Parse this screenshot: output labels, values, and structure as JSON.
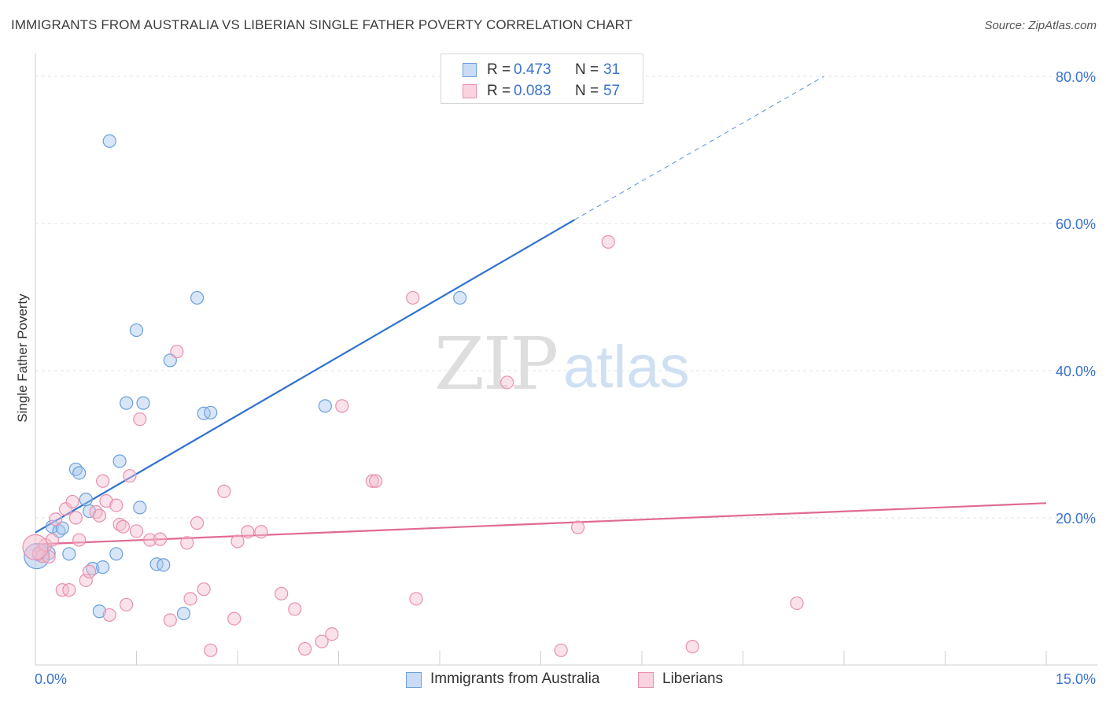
{
  "title": "IMMIGRANTS FROM AUSTRALIA VS LIBERIAN SINGLE FATHER POVERTY CORRELATION CHART",
  "source": "Source: ZipAtlas.com",
  "watermark": {
    "zip": "ZIP",
    "atlas": "atlas"
  },
  "legend": {
    "rows": [
      {
        "r_label": "R =",
        "r_value": "0.473",
        "n_label": "N =",
        "n_value": "31"
      },
      {
        "r_label": "R =",
        "r_value": "0.083",
        "n_label": "N =",
        "n_value": "57"
      }
    ]
  },
  "colors": {
    "blue_fill": "#a9c8ee",
    "blue_stroke": "#6b9fdc",
    "blue_line": "#2f72d0",
    "pink_fill": "#f5bfd0",
    "pink_stroke": "#e98fad",
    "pink_line": "#e06a94",
    "axis_text": "#3a74d0",
    "grid": "#e3e3e3"
  },
  "chart_data": {
    "type": "scatter",
    "title": "IMMIGRANTS FROM AUSTRALIA VS LIBERIAN SINGLE FATHER POVERTY CORRELATION CHART",
    "xlabel": "",
    "ylabel": "Single Father Poverty",
    "xlim": [
      0,
      15
    ],
    "ylim": [
      0,
      80
    ],
    "x_tick_labels": [
      "0.0%",
      "15.0%"
    ],
    "y_ticks": [
      20,
      40,
      60,
      80
    ],
    "y_tick_labels": [
      "20.0%",
      "40.0%",
      "60.0%",
      "80.0%"
    ],
    "series": [
      {
        "name": "Immigrants from Australia",
        "color_key": "blue",
        "points": [
          [
            0.05,
            15.0
          ],
          [
            0.1,
            15.5
          ],
          [
            0.2,
            15.2
          ],
          [
            0.25,
            18.8
          ],
          [
            0.35,
            18.2
          ],
          [
            0.4,
            18.6
          ],
          [
            0.5,
            15.1
          ],
          [
            0.6,
            26.6
          ],
          [
            0.65,
            26.1
          ],
          [
            0.75,
            22.5
          ],
          [
            0.8,
            20.9
          ],
          [
            0.85,
            13.1
          ],
          [
            0.95,
            7.3
          ],
          [
            1.0,
            13.3
          ],
          [
            1.1,
            71.2
          ],
          [
            1.2,
            15.1
          ],
          [
            1.25,
            27.7
          ],
          [
            1.35,
            35.6
          ],
          [
            1.5,
            45.5
          ],
          [
            1.55,
            21.4
          ],
          [
            1.6,
            35.6
          ],
          [
            1.8,
            13.7
          ],
          [
            1.9,
            13.6
          ],
          [
            2.0,
            41.4
          ],
          [
            2.2,
            7.0
          ],
          [
            2.4,
            49.9
          ],
          [
            2.5,
            34.2
          ],
          [
            2.6,
            34.3
          ],
          [
            4.3,
            35.2
          ],
          [
            6.3,
            49.9
          ],
          [
            0.02,
            14.8
          ]
        ],
        "trend": {
          "x": [
            0.0,
            8.0
          ],
          "y": [
            18.0,
            60.5
          ],
          "dashed_to": [
            11.7,
            80.0
          ]
        }
      },
      {
        "name": "Liberians",
        "color_key": "pink",
        "points": [
          [
            0.05,
            15.2
          ],
          [
            0.1,
            14.8
          ],
          [
            0.15,
            16.3
          ],
          [
            0.2,
            14.7
          ],
          [
            0.25,
            17.0
          ],
          [
            0.3,
            19.8
          ],
          [
            0.4,
            10.2
          ],
          [
            0.45,
            21.2
          ],
          [
            0.5,
            10.2
          ],
          [
            0.55,
            22.2
          ],
          [
            0.6,
            20.0
          ],
          [
            0.65,
            17.0
          ],
          [
            0.75,
            11.5
          ],
          [
            0.8,
            12.7
          ],
          [
            0.9,
            20.8
          ],
          [
            0.95,
            20.3
          ],
          [
            1.0,
            25.0
          ],
          [
            1.05,
            22.3
          ],
          [
            1.1,
            6.8
          ],
          [
            1.2,
            21.7
          ],
          [
            1.25,
            19.1
          ],
          [
            1.3,
            18.8
          ],
          [
            1.35,
            8.2
          ],
          [
            1.4,
            25.7
          ],
          [
            1.5,
            18.2
          ],
          [
            1.55,
            33.4
          ],
          [
            1.7,
            17.0
          ],
          [
            1.85,
            17.1
          ],
          [
            2.0,
            6.1
          ],
          [
            2.1,
            42.6
          ],
          [
            2.25,
            16.6
          ],
          [
            2.3,
            9.0
          ],
          [
            2.4,
            19.3
          ],
          [
            2.5,
            10.3
          ],
          [
            2.6,
            2.0
          ],
          [
            2.8,
            23.6
          ],
          [
            2.95,
            6.3
          ],
          [
            3.0,
            16.8
          ],
          [
            3.15,
            18.1
          ],
          [
            3.35,
            18.1
          ],
          [
            3.65,
            9.7
          ],
          [
            3.85,
            7.6
          ],
          [
            4.0,
            2.2
          ],
          [
            4.25,
            3.2
          ],
          [
            4.4,
            4.2
          ],
          [
            4.55,
            35.2
          ],
          [
            5.0,
            25.0
          ],
          [
            5.05,
            25.0
          ],
          [
            5.6,
            49.9
          ],
          [
            5.65,
            9.0
          ],
          [
            7.0,
            38.4
          ],
          [
            7.8,
            2.0
          ],
          [
            8.05,
            18.7
          ],
          [
            8.5,
            57.5
          ],
          [
            9.75,
            2.5
          ],
          [
            11.3,
            8.4
          ],
          [
            0.0,
            16.0
          ]
        ],
        "trend": {
          "x": [
            0.0,
            15.0
          ],
          "y": [
            16.4,
            22.0
          ]
        }
      }
    ]
  },
  "bottom_legend": [
    {
      "label": "Immigrants from Australia"
    },
    {
      "label": "Liberians"
    }
  ]
}
